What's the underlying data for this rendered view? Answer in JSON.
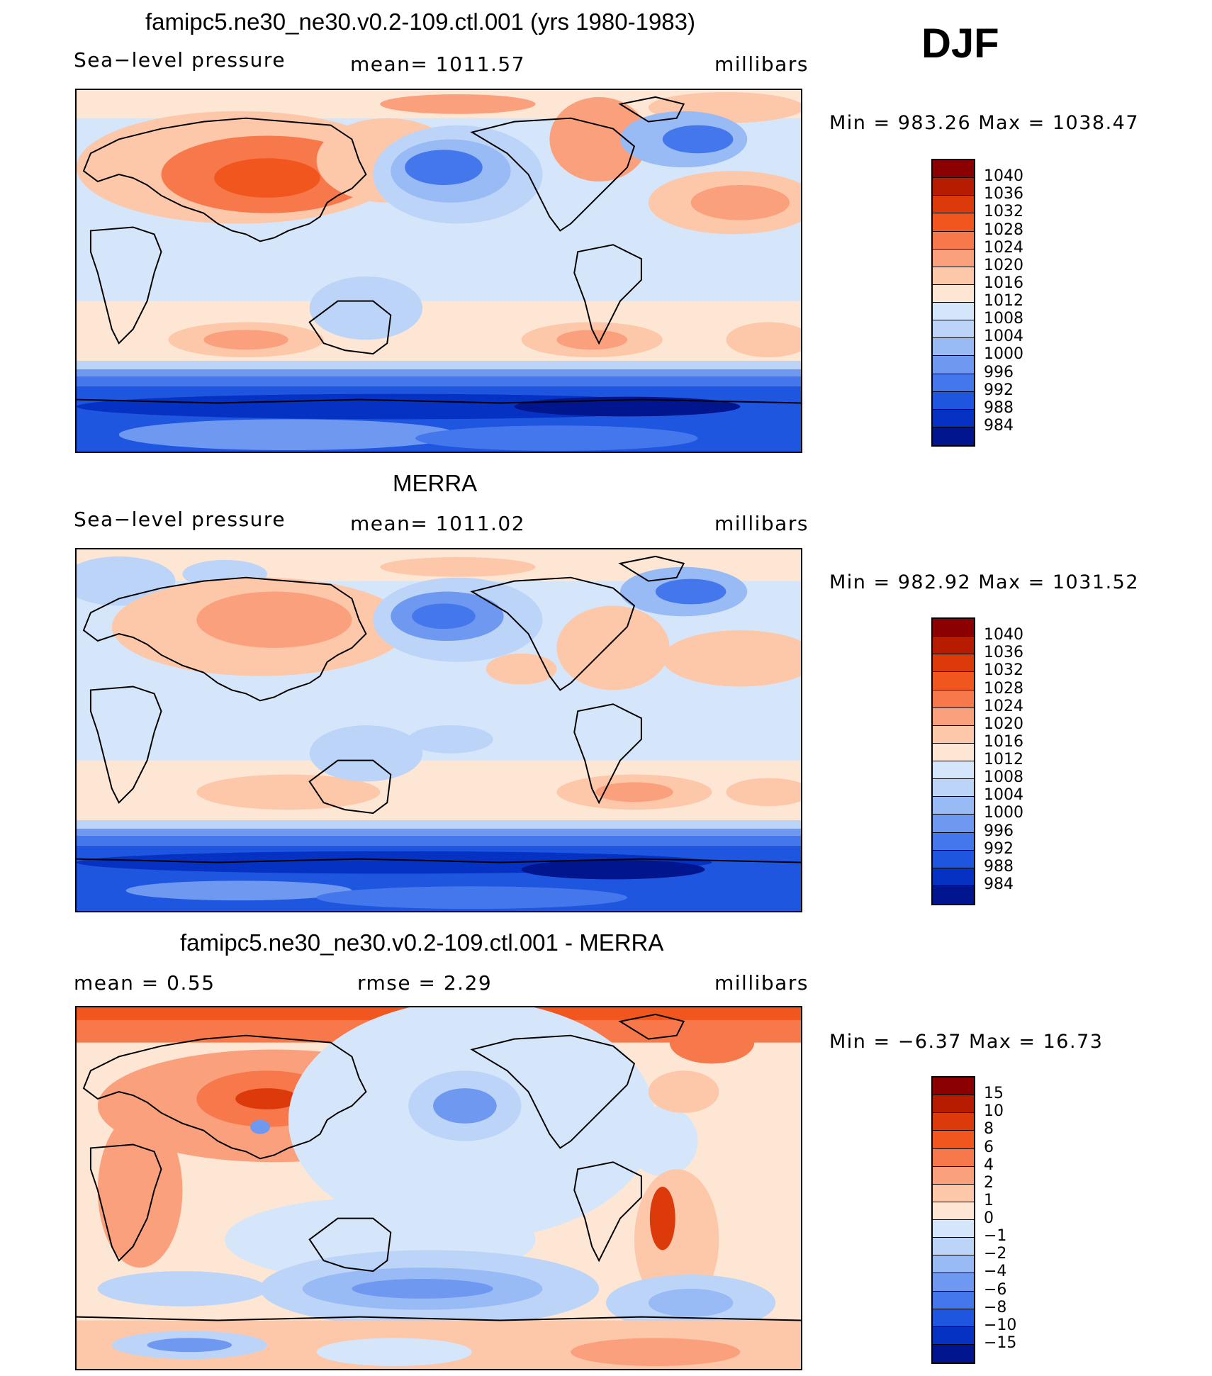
{
  "season": "DJF",
  "chart_data": [
    {
      "type": "heatmap",
      "title": "famipc5.ne30_ne30.v0.2-109.ctl.001 (yrs 1980-1983)",
      "left_label": "Sea−level pressure",
      "center_label": "mean=  1011.57",
      "right_label": "millibars",
      "minmax": "Min  =  983.26  Max  =  1038.47",
      "levels": [
        "1040",
        "1036",
        "1032",
        "1028",
        "1024",
        "1020",
        "1016",
        "1012",
        "1008",
        "1004",
        "1000",
        "996",
        "992",
        "988",
        "984"
      ],
      "colors": [
        "#8b0000",
        "#b81c00",
        "#dd3a0c",
        "#f0561e",
        "#f7784a",
        "#fba07c",
        "#fdc7aa",
        "#fde6d4",
        "#d6e6fa",
        "#bcd4f8",
        "#98baf5",
        "#6f98f0",
        "#4577ec",
        "#1f56e0",
        "#0532c2",
        "#00158e"
      ],
      "stats": {
        "mean": 1011.57,
        "min": 983.26,
        "max": 1038.47
      }
    },
    {
      "type": "heatmap",
      "title": "MERRA",
      "left_label": "Sea−level pressure",
      "center_label": "mean=  1011.02",
      "right_label": "millibars",
      "minmax": "Min  =  982.92  Max  =  1031.52",
      "levels": [
        "1040",
        "1036",
        "1032",
        "1028",
        "1024",
        "1020",
        "1016",
        "1012",
        "1008",
        "1004",
        "1000",
        "996",
        "992",
        "988",
        "984"
      ],
      "colors": [
        "#8b0000",
        "#b81c00",
        "#dd3a0c",
        "#f0561e",
        "#f7784a",
        "#fba07c",
        "#fdc7aa",
        "#fde6d4",
        "#d6e6fa",
        "#bcd4f8",
        "#98baf5",
        "#6f98f0",
        "#4577ec",
        "#1f56e0",
        "#0532c2",
        "#00158e"
      ],
      "stats": {
        "mean": 1011.02,
        "min": 982.92,
        "max": 1031.52
      }
    },
    {
      "type": "heatmap",
      "title": "famipc5.ne30_ne30.v0.2-109.ctl.001 - MERRA",
      "left_label": "mean  =     0.55",
      "center_label": "rmse  =     2.29",
      "right_label": "millibars",
      "minmax": "Min  =   −6.37  Max  =    16.73",
      "levels": [
        "15",
        "10",
        "8",
        "6",
        "4",
        "2",
        "1",
        "0",
        "−1",
        "−2",
        "−4",
        "−6",
        "−8",
        "−10",
        "−15"
      ],
      "colors": [
        "#8b0000",
        "#b81c00",
        "#dd3a0c",
        "#f0561e",
        "#f7784a",
        "#fba07c",
        "#fdc7aa",
        "#fde6d4",
        "#d6e6fa",
        "#bcd4f8",
        "#98baf5",
        "#6f98f0",
        "#4577ec",
        "#1f56e0",
        "#0532c2",
        "#00158e"
      ],
      "stats": {
        "mean": 0.55,
        "rmse": 2.29,
        "min": -6.37,
        "max": 16.73
      }
    }
  ]
}
